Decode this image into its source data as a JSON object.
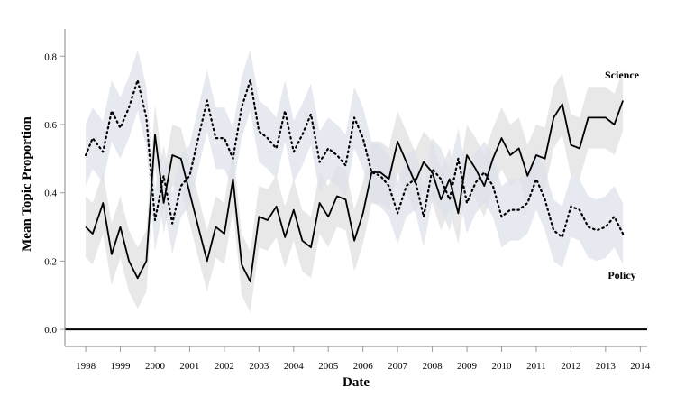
{
  "chart_data": {
    "type": "line",
    "xlabel": "Date",
    "ylabel": "Mean Topic Proportion",
    "xlim": [
      1997.4,
      2014.2
    ],
    "ylim": [
      -0.05,
      0.88
    ],
    "x_ticks": [
      1998,
      1999,
      2000,
      2001,
      2002,
      2003,
      2004,
      2005,
      2006,
      2007,
      2008,
      2009,
      2010,
      2011,
      2012,
      2013,
      2014
    ],
    "y_ticks": [
      0.0,
      0.2,
      0.4,
      0.6,
      0.8
    ],
    "reference_line": 0.0,
    "series": [
      {
        "name": "Science",
        "style": "solid",
        "color": "#000000",
        "band_color": "#e0e0e0",
        "x": [
          1998.0,
          1998.2,
          1998.5,
          1998.75,
          1999.0,
          1999.25,
          1999.5,
          1999.75,
          2000.0,
          2000.25,
          2000.5,
          2000.75,
          2001.0,
          2001.25,
          2001.5,
          2001.75,
          2002.0,
          2002.25,
          2002.5,
          2002.75,
          2003.0,
          2003.25,
          2003.5,
          2003.75,
          2004.0,
          2004.25,
          2004.5,
          2004.75,
          2005.0,
          2005.25,
          2005.5,
          2005.75,
          2006.0,
          2006.25,
          2006.5,
          2006.75,
          2007.0,
          2007.25,
          2007.5,
          2007.75,
          2008.0,
          2008.25,
          2008.5,
          2008.75,
          2009.0,
          2009.25,
          2009.5,
          2009.75,
          2010.0,
          2010.25,
          2010.5,
          2010.75,
          2011.0,
          2011.25,
          2011.5,
          2011.75,
          2012.0,
          2012.25,
          2012.5,
          2012.75,
          2013.0,
          2013.25,
          2013.5
        ],
        "values": [
          0.3,
          0.28,
          0.37,
          0.22,
          0.3,
          0.2,
          0.15,
          0.2,
          0.57,
          0.37,
          0.51,
          0.5,
          0.4,
          0.3,
          0.2,
          0.3,
          0.28,
          0.44,
          0.19,
          0.14,
          0.33,
          0.32,
          0.36,
          0.27,
          0.35,
          0.26,
          0.24,
          0.37,
          0.33,
          0.39,
          0.38,
          0.26,
          0.34,
          0.46,
          0.46,
          0.44,
          0.55,
          0.49,
          0.43,
          0.49,
          0.46,
          0.38,
          0.44,
          0.34,
          0.51,
          0.47,
          0.42,
          0.5,
          0.56,
          0.51,
          0.53,
          0.45,
          0.51,
          0.5,
          0.62,
          0.66,
          0.54,
          0.53,
          0.62,
          0.62,
          0.62,
          0.6,
          0.67
        ],
        "band_halfwidth": 0.09
      },
      {
        "name": "Policy",
        "style": "dotted",
        "color": "#000000",
        "band_color": "#dde2ea",
        "x": [
          1998.0,
          1998.2,
          1998.5,
          1998.75,
          1999.0,
          1999.25,
          1999.5,
          1999.75,
          2000.0,
          2000.25,
          2000.5,
          2000.75,
          2001.0,
          2001.25,
          2001.5,
          2001.75,
          2002.0,
          2002.25,
          2002.5,
          2002.75,
          2003.0,
          2003.25,
          2003.5,
          2003.75,
          2004.0,
          2004.25,
          2004.5,
          2004.75,
          2005.0,
          2005.25,
          2005.5,
          2005.75,
          2006.0,
          2006.25,
          2006.5,
          2006.75,
          2007.0,
          2007.25,
          2007.5,
          2007.75,
          2008.0,
          2008.25,
          2008.5,
          2008.75,
          2009.0,
          2009.25,
          2009.5,
          2009.75,
          2010.0,
          2010.25,
          2010.5,
          2010.75,
          2011.0,
          2011.25,
          2011.5,
          2011.75,
          2012.0,
          2012.25,
          2012.5,
          2012.75,
          2013.0,
          2013.25,
          2013.5
        ],
        "values": [
          0.51,
          0.56,
          0.52,
          0.64,
          0.59,
          0.65,
          0.73,
          0.62,
          0.32,
          0.45,
          0.31,
          0.42,
          0.45,
          0.56,
          0.67,
          0.56,
          0.56,
          0.5,
          0.65,
          0.73,
          0.58,
          0.56,
          0.53,
          0.64,
          0.52,
          0.57,
          0.63,
          0.49,
          0.53,
          0.51,
          0.48,
          0.62,
          0.56,
          0.46,
          0.45,
          0.42,
          0.34,
          0.42,
          0.44,
          0.33,
          0.47,
          0.44,
          0.38,
          0.5,
          0.37,
          0.43,
          0.46,
          0.42,
          0.33,
          0.35,
          0.35,
          0.37,
          0.44,
          0.38,
          0.29,
          0.27,
          0.36,
          0.35,
          0.3,
          0.29,
          0.3,
          0.33,
          0.28
        ],
        "band_halfwidth": 0.09
      }
    ]
  }
}
